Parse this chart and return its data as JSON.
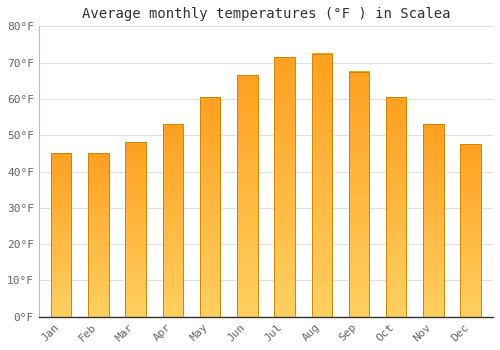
{
  "title": "Average monthly temperatures (°F ) in Scalea",
  "months": [
    "Jan",
    "Feb",
    "Mar",
    "Apr",
    "May",
    "Jun",
    "Jul",
    "Aug",
    "Sep",
    "Oct",
    "Nov",
    "Dec"
  ],
  "values": [
    45,
    45,
    48,
    53,
    60.5,
    66.5,
    71.5,
    72.5,
    67.5,
    60.5,
    53,
    47.5
  ],
  "bar_color_main": "#FFA020",
  "bar_color_light": "#FFD060",
  "bar_edge_color": "#CC8800",
  "background_color": "#FFFFFF",
  "plot_bg_color": "#FFFFFF",
  "grid_color": "#E0E0E0",
  "title_fontsize": 10,
  "tick_fontsize": 8,
  "tick_color": "#666666",
  "title_color": "#333333",
  "ylim": [
    0,
    80
  ],
  "yticks": [
    0,
    10,
    20,
    30,
    40,
    50,
    60,
    70,
    80
  ],
  "ytick_labels": [
    "0°F",
    "10°F",
    "20°F",
    "30°F",
    "40°F",
    "50°F",
    "60°F",
    "70°F",
    "80°F"
  ]
}
